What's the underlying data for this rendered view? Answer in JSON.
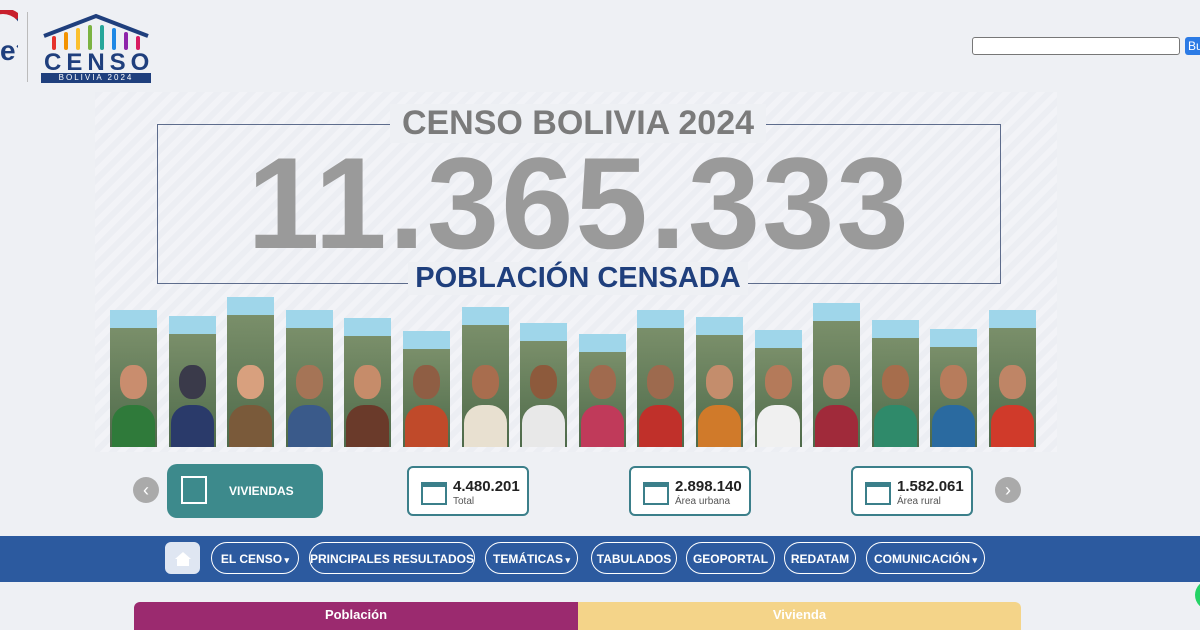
{
  "header": {
    "logo_left": "e",
    "logo_title": "CENSO",
    "logo_subtitle": "BOLIVIA 2024",
    "search_button": "Bu"
  },
  "hero": {
    "title": "CENSO BOLIVIA 2024",
    "count": "11.365.333",
    "caption": "POBLACIÓN CENSADA"
  },
  "stats": {
    "category": "VIVIENDAS",
    "items": [
      {
        "value": "4.480.201",
        "label": "Total"
      },
      {
        "value": "2.898.140",
        "label": "Área urbana"
      },
      {
        "value": "1.582.061",
        "label": "Área rural"
      }
    ]
  },
  "nav": [
    "EL CENSO",
    "PRINCIPALES RESULTADOS",
    "TEMÁTICAS",
    "TABULADOS",
    "GEOPORTAL",
    "REDATAM",
    "COMUNICACIÓN"
  ],
  "tabs": [
    "Población",
    "Vivienda"
  ]
}
